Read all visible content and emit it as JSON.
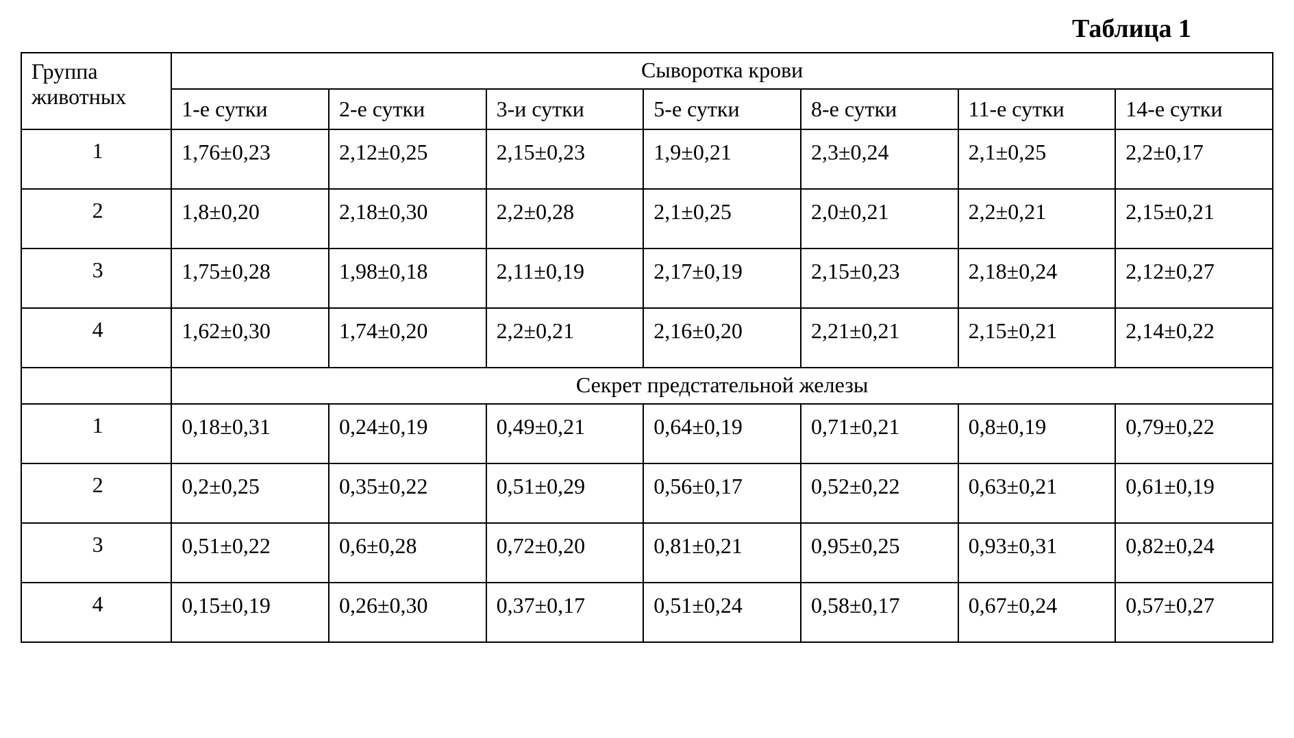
{
  "title": "Таблица 1",
  "headers": {
    "group": "Группа животных",
    "section1": "Сыворотка крови",
    "section2": "Секрет предстательной железы",
    "cols": [
      "1-е сутки",
      "2-е сутки",
      "3-и сутки",
      "5-е сутки",
      "8-е сутки",
      "11-е сутки",
      "14-е сутки"
    ]
  },
  "section1_rows": [
    {
      "group": "1",
      "cells": [
        "1,76±0,23",
        "2,12±0,25",
        "2,15±0,23",
        "1,9±0,21",
        "2,3±0,24",
        "2,1±0,25",
        "2,2±0,17"
      ]
    },
    {
      "group": "2",
      "cells": [
        "1,8±0,20",
        "2,18±0,30",
        "2,2±0,28",
        "2,1±0,25",
        "2,0±0,21",
        "2,2±0,21",
        "2,15±0,21"
      ]
    },
    {
      "group": "3",
      "cells": [
        "1,75±0,28",
        "1,98±0,18",
        "2,11±0,19",
        "2,17±0,19",
        "2,15±0,23",
        "2,18±0,24",
        "2,12±0,27"
      ]
    },
    {
      "group": "4",
      "cells": [
        "1,62±0,30",
        "1,74±0,20",
        "2,2±0,21",
        "2,16±0,20",
        "2,21±0,21",
        "2,15±0,21",
        "2,14±0,22"
      ]
    }
  ],
  "section2_rows": [
    {
      "group": "1",
      "cells": [
        "0,18±0,31",
        "0,24±0,19",
        "0,49±0,21",
        "0,64±0,19",
        "0,71±0,21",
        "0,8±0,19",
        "0,79±0,22"
      ]
    },
    {
      "group": "2",
      "cells": [
        "0,2±0,25",
        "0,35±0,22",
        "0,51±0,29",
        "0,56±0,17",
        "0,52±0,22",
        "0,63±0,21",
        "0,61±0,19"
      ]
    },
    {
      "group": "3",
      "cells": [
        "0,51±0,22",
        "0,6±0,28",
        "0,72±0,20",
        "0,81±0,21",
        "0,95±0,25",
        "0,93±0,31",
        "0,82±0,24"
      ]
    },
    {
      "group": "4",
      "cells": [
        "0,15±0,19",
        "0,26±0,30",
        "0,37±0,17",
        "0,51±0,24",
        "0,58±0,17",
        "0,67±0,24",
        "0,57±0,27"
      ]
    }
  ],
  "styling": {
    "font_family": "Times New Roman",
    "title_fontsize": 38,
    "cell_fontsize": 32,
    "border_color": "#000000",
    "border_width": 2,
    "background_color": "#ffffff",
    "text_color": "#000000",
    "column_widths_pct": [
      12,
      12.57,
      12.57,
      12.57,
      12.57,
      12.57,
      12.57,
      12.57
    ]
  }
}
